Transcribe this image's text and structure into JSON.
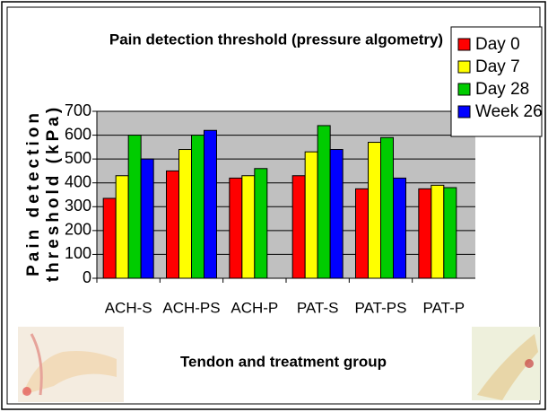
{
  "chart_data": {
    "type": "bar",
    "title": "Pain detection threshold (pressure algometry)",
    "y_label": [
      "Pain detection",
      "threshold (kPa)"
    ],
    "x_label": "Tendon and treatment group",
    "categories": [
      "ACH-S",
      "ACH-PS",
      "ACH-P",
      "PAT-S",
      "PAT-PS",
      "PAT-P"
    ],
    "series": [
      {
        "name": "Day 0",
        "color": "#ff0000",
        "values": [
          335,
          450,
          420,
          430,
          375,
          375
        ]
      },
      {
        "name": "Day 7",
        "color": "#ffff00",
        "values": [
          430,
          540,
          430,
          530,
          570,
          390
        ]
      },
      {
        "name": "Day 28",
        "color": "#00cc00",
        "values": [
          600,
          600,
          460,
          640,
          590,
          380
        ]
      },
      {
        "name": "Week 26",
        "color": "#0000ff",
        "values": [
          500,
          620,
          null,
          540,
          420,
          null
        ]
      }
    ],
    "ylim": [
      0,
      700
    ],
    "yticks": [
      0,
      100,
      200,
      300,
      400,
      500,
      600,
      700
    ],
    "grid": true,
    "plot_background": "#c0c0c0",
    "legend_position": "top-right"
  }
}
